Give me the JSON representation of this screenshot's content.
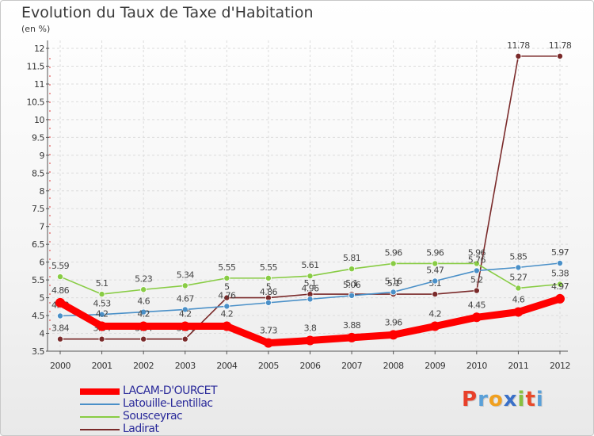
{
  "header": {
    "title": "Evolution du Taux de Taxe d'Habitation",
    "unit": "(en %)"
  },
  "chart_data": {
    "type": "line",
    "title": "Evolution du Taux de Taxe d'Habitation",
    "ylabel": "(en %)",
    "xlabel": "",
    "x": [
      "2000",
      "2001",
      "2002",
      "2003",
      "2004",
      "2005",
      "2006",
      "2007",
      "2008",
      "2009",
      "2010",
      "2011",
      "2012"
    ],
    "ylim": [
      3.5,
      12
    ],
    "yticks": [
      "3.5",
      "4",
      "4.5",
      "5",
      "5.5",
      "6",
      "6.5",
      "7",
      "7.5",
      "8",
      "8.5",
      "9",
      "9.5",
      "10",
      "10.5",
      "11",
      "11.5",
      "12"
    ],
    "grid": true,
    "legend": "bottom-left",
    "series": [
      {
        "name": "LACAM-D'OURCET",
        "color": "#ff0000",
        "values": [
          4.86,
          4.2,
          4.2,
          4.2,
          4.2,
          3.73,
          3.8,
          3.88,
          3.96,
          4.2,
          4.45,
          4.6,
          4.97
        ],
        "labels": [
          "4.86",
          "4.2",
          "4.2",
          "4.2",
          "4.2",
          "3.73",
          "3.8",
          "3.88",
          "3.96",
          "4.2",
          "4.45",
          "4.6",
          "4.97"
        ]
      },
      {
        "name": "Latouille-Lentillac",
        "color": "#4a90c8",
        "values": [
          4.49,
          4.53,
          4.6,
          4.67,
          4.76,
          4.86,
          4.96,
          5.06,
          5.16,
          5.47,
          5.76,
          5.85,
          5.97
        ],
        "labels": [
          "4.49",
          "4.53",
          "4.6",
          "4.67",
          "4.76",
          "4.86",
          "4.96",
          "5.06",
          "5.16",
          "5.47",
          "5.76",
          "5.85",
          "5.97"
        ]
      },
      {
        "name": "Sousceyrac",
        "color": "#88cc44",
        "values": [
          5.59,
          5.1,
          5.23,
          5.34,
          5.55,
          5.55,
          5.61,
          5.81,
          5.96,
          5.96,
          5.96,
          5.27,
          5.38
        ],
        "labels": [
          "5.59",
          "5.1",
          "5.23",
          "5.34",
          "5.55",
          "5.55",
          "5.61",
          "5.81",
          "5.96",
          "5.96",
          "5.96",
          "5.27",
          "5.38"
        ]
      },
      {
        "name": "Ladirat",
        "color": "#7a2a2a",
        "values": [
          3.84,
          3.84,
          3.84,
          3.84,
          5,
          5,
          5.1,
          5.1,
          5.1,
          5.1,
          5.2,
          11.78,
          11.78
        ],
        "labels": [
          "3.84",
          "3.84",
          "3.84",
          "3.84",
          "5",
          "5",
          "5.1",
          "5.1",
          "5.1",
          "5.1",
          "5.2",
          "11.78",
          "11.78"
        ]
      }
    ]
  },
  "logo": {
    "letters": [
      "P",
      "r",
      "o",
      "x",
      "i",
      "t",
      "i"
    ],
    "colors": [
      "#e8402a",
      "#5aa0d8",
      "#f0a020",
      "#3a70c8",
      "#88c040",
      "#e84a2a",
      "#5aa0d8"
    ]
  }
}
